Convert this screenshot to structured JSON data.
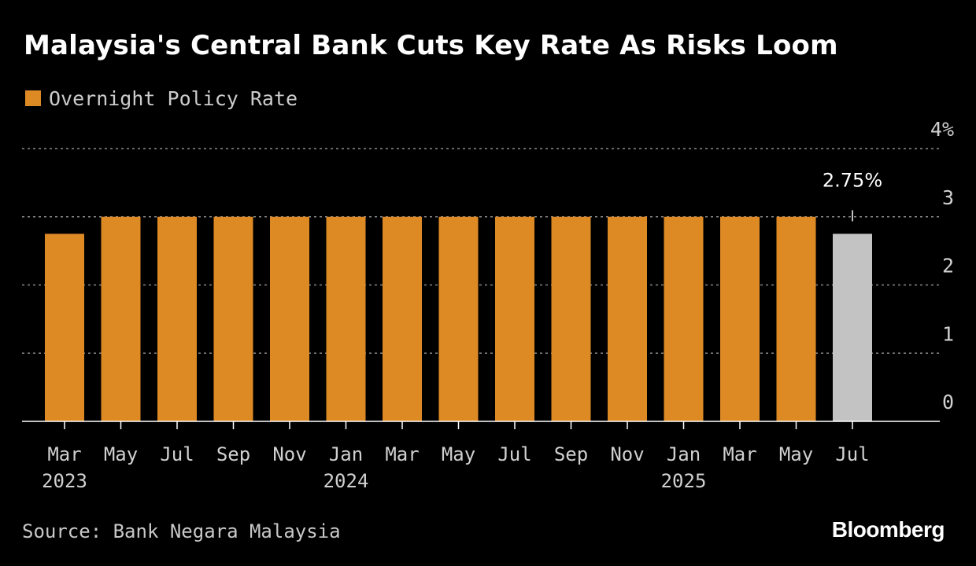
{
  "title": "Malaysia's Central Bank Cuts Key Rate As Risks Loom",
  "legend": {
    "label": "Overnight Policy Rate",
    "color": "#dd8a25"
  },
  "source": "Source: Bank Negara Malaysia",
  "brand": "Bloomberg",
  "colors": {
    "bar": "#dd8a25",
    "highlight": "#c3c3c3",
    "background": "#000000"
  },
  "chart_data": {
    "type": "bar",
    "categories": [
      "Mar 2023",
      "May 2023",
      "Jul 2023",
      "Sep 2023",
      "Nov 2023",
      "Jan 2024",
      "Mar 2024",
      "May 2024",
      "Jul 2024",
      "Sep 2024",
      "Nov 2024",
      "Jan 2025",
      "Mar 2025",
      "May 2025",
      "Jul 2025"
    ],
    "tick_labels": [
      "Mar",
      "May",
      "Jul",
      "Sep",
      "Nov",
      "Jan",
      "Mar",
      "May",
      "Jul",
      "Sep",
      "Nov",
      "Jan",
      "Mar",
      "May",
      "Jul"
    ],
    "year_labels": [
      {
        "index": 0,
        "label": "2023"
      },
      {
        "index": 5,
        "label": "2024"
      },
      {
        "index": 11,
        "label": "2025"
      }
    ],
    "series": [
      {
        "name": "Overnight Policy Rate",
        "values": [
          2.75,
          3.0,
          3.0,
          3.0,
          3.0,
          3.0,
          3.0,
          3.0,
          3.0,
          3.0,
          3.0,
          3.0,
          3.0,
          3.0,
          2.75
        ]
      }
    ],
    "highlight_index": 14,
    "annotation": {
      "index": 14,
      "text": "2.75%"
    },
    "ylim": [
      0,
      4
    ],
    "yticks": [
      0,
      1,
      2,
      3,
      4
    ],
    "ytick_labels": [
      "0",
      "1",
      "2",
      "3",
      "4%"
    ],
    "grid": true,
    "legend_position": "top-left",
    "xlabel": "",
    "ylabel": ""
  }
}
